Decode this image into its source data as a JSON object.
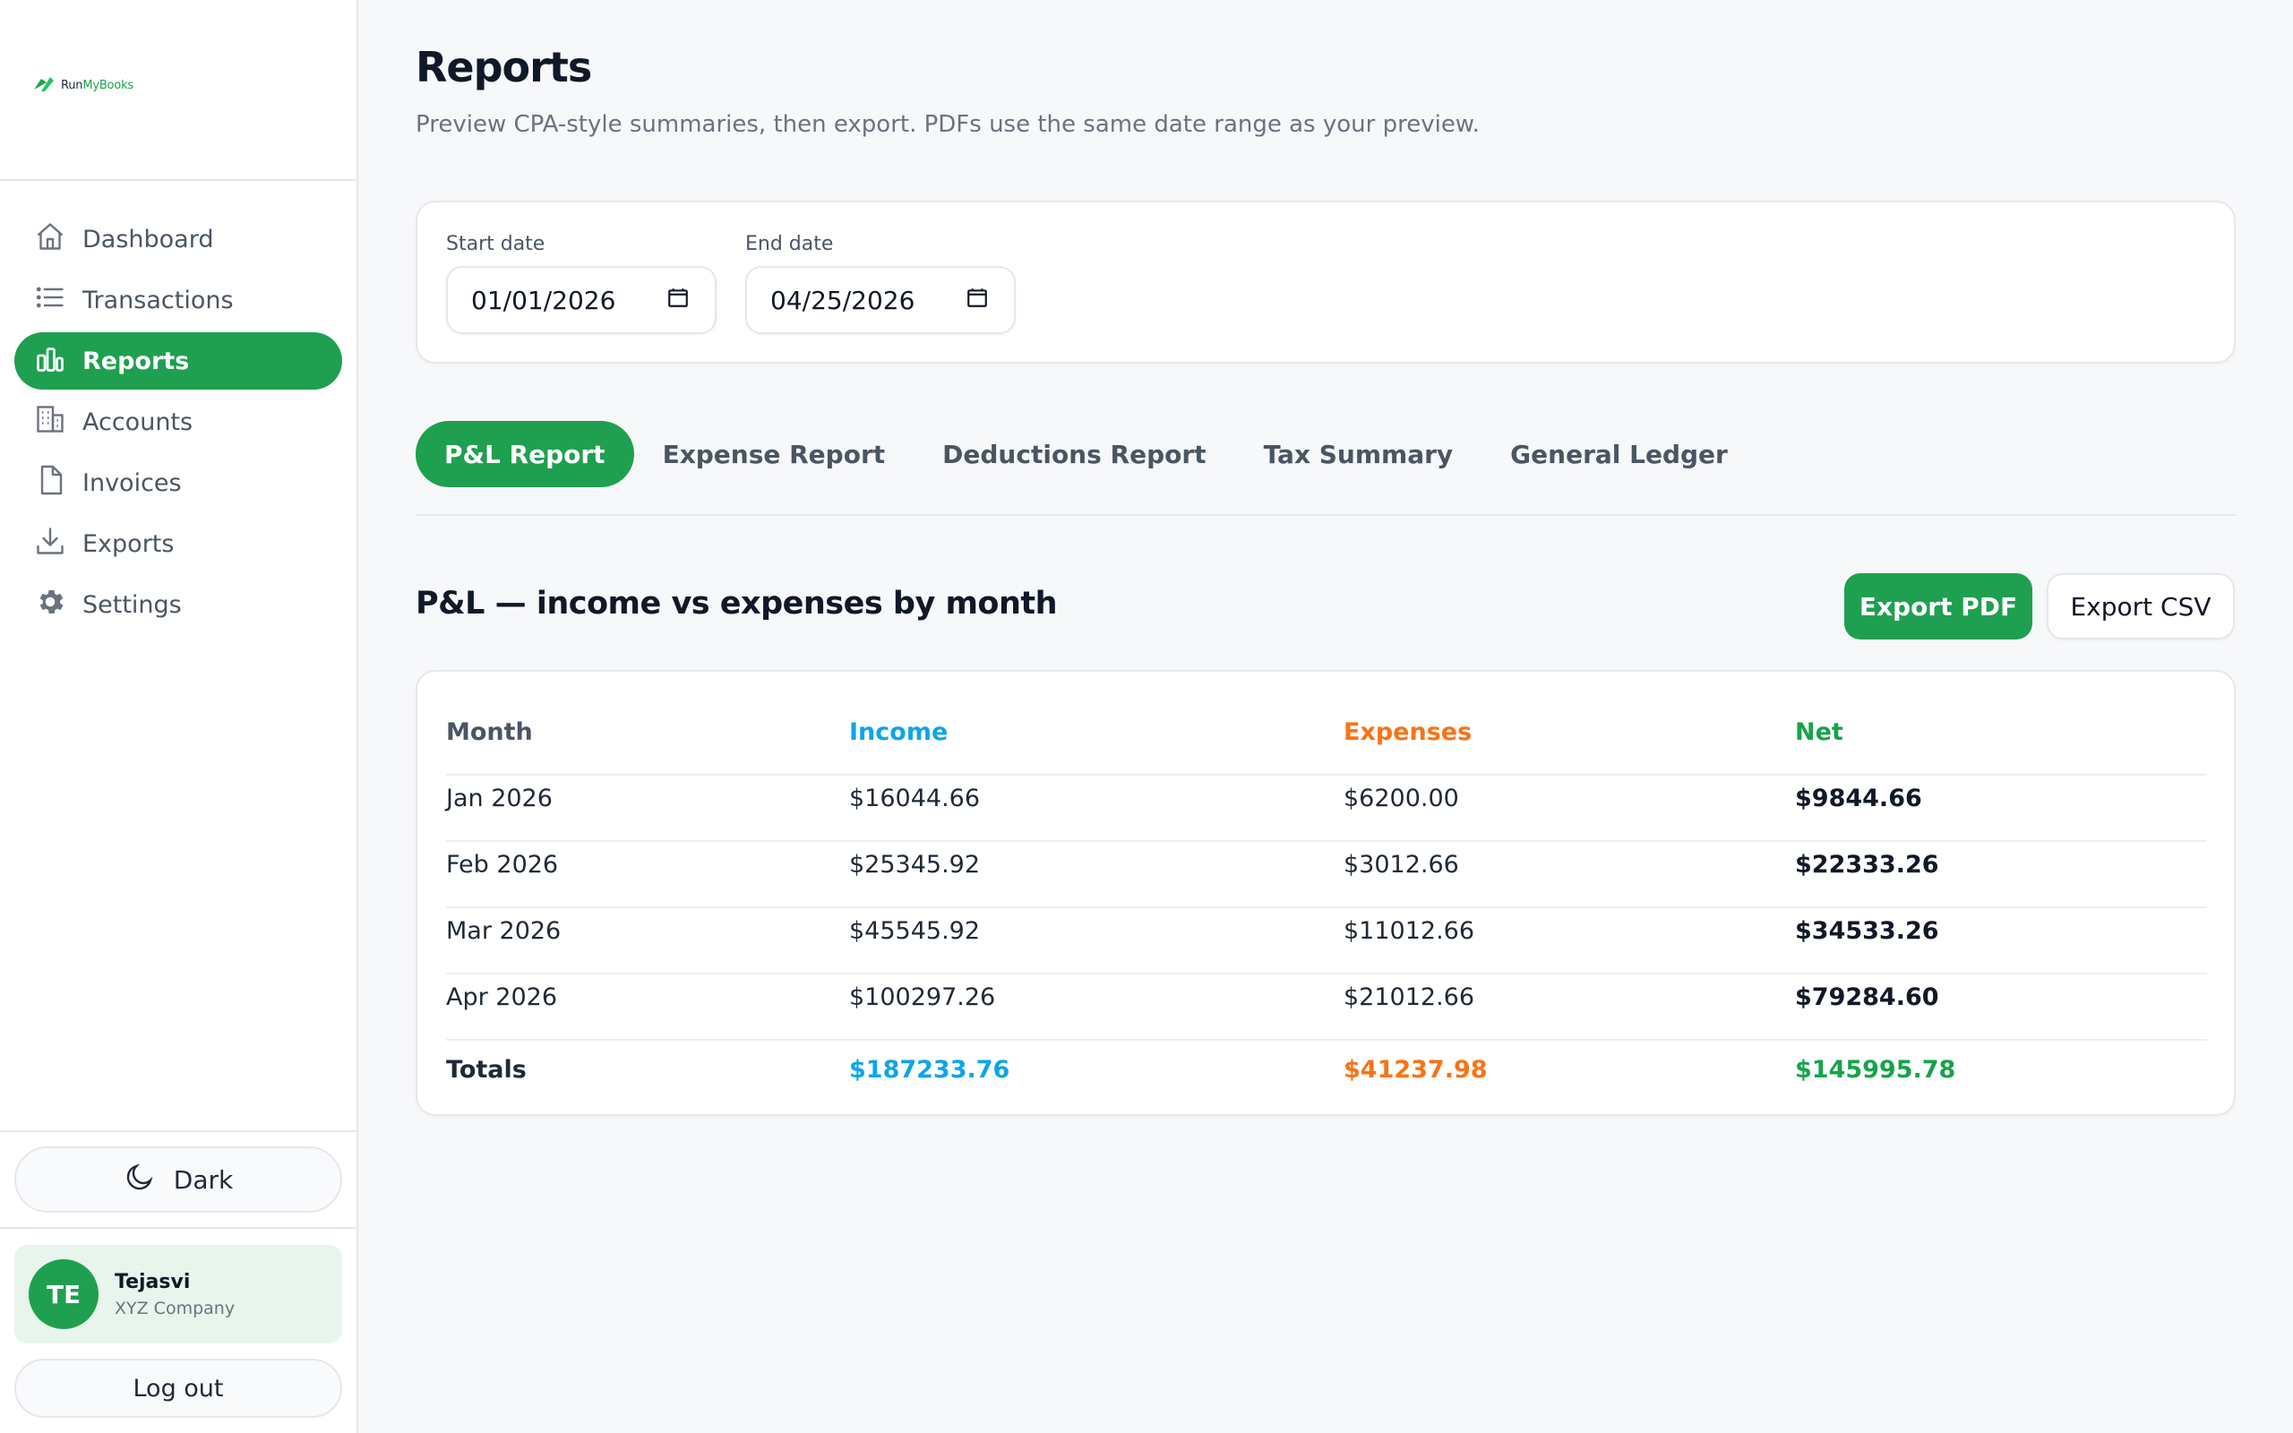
{
  "brand": {
    "name_part1": "Run",
    "name_part2": "MyBooks"
  },
  "sidebar": {
    "items": [
      {
        "label": "Dashboard",
        "icon": "home-icon"
      },
      {
        "label": "Transactions",
        "icon": "list-icon"
      },
      {
        "label": "Reports",
        "icon": "bar-chart-icon",
        "active": true
      },
      {
        "label": "Accounts",
        "icon": "building-icon"
      },
      {
        "label": "Invoices",
        "icon": "file-icon"
      },
      {
        "label": "Exports",
        "icon": "download-icon"
      },
      {
        "label": "Settings",
        "icon": "gear-icon"
      }
    ],
    "theme_label": "Dark",
    "user": {
      "initials": "TE",
      "name": "Tejasvi",
      "company": "XYZ Company"
    },
    "logout_label": "Log out"
  },
  "page": {
    "title": "Reports",
    "subtitle": "Preview CPA-style summaries, then export. PDFs use the same date range as your preview."
  },
  "filters": {
    "start_label": "Start date",
    "start_value": "01/01/2026",
    "end_label": "End date",
    "end_value": "04/25/2026"
  },
  "tabs": [
    {
      "label": "P&L Report",
      "active": true
    },
    {
      "label": "Expense Report"
    },
    {
      "label": "Deductions Report"
    },
    {
      "label": "Tax Summary"
    },
    {
      "label": "General Ledger"
    }
  ],
  "report": {
    "title": "P&L — income vs expenses by month",
    "export_pdf": "Export PDF",
    "export_csv": "Export CSV",
    "columns": [
      "Month",
      "Income",
      "Expenses",
      "Net"
    ],
    "rows": [
      [
        "Jan 2026",
        "$16044.66",
        "$6200.00",
        "$9844.66"
      ],
      [
        "Feb 2026",
        "$25345.92",
        "$3012.66",
        "$22333.26"
      ],
      [
        "Mar 2026",
        "$45545.92",
        "$11012.66",
        "$34533.26"
      ],
      [
        "Apr 2026",
        "$100297.26",
        "$21012.66",
        "$79284.60"
      ]
    ],
    "totals": [
      "Totals",
      "$187233.76",
      "$41237.98",
      "$145995.78"
    ]
  },
  "colors": {
    "accent": "#1ea050",
    "income": "#0ea5e9",
    "expenses": "#f97316",
    "net": "#16a34a"
  }
}
